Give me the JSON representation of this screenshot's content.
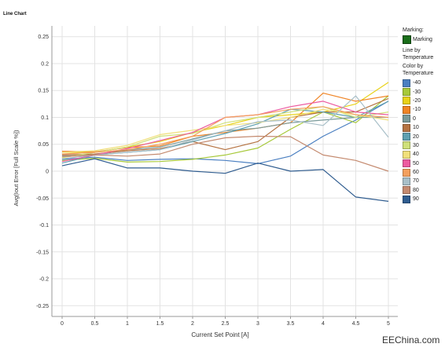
{
  "chart_data": {
    "type": "line",
    "title": "Line Chart",
    "xlabel": "Current Set Point [A]",
    "ylabel": "Avg(Iout Error [Full Scale %])",
    "x": [
      0,
      0.5,
      1,
      1.5,
      2,
      2.5,
      3,
      3.5,
      4,
      4.5,
      5
    ],
    "x_ticks": [
      "0",
      "0.5",
      "1",
      "1.5",
      "2",
      "2.5",
      "3",
      "3.5",
      "4",
      "4.5",
      "5"
    ],
    "ylim": [
      -0.27,
      0.27
    ],
    "y_ticks": [
      "0.25",
      "0.2",
      "0.15",
      "0.1",
      "0.05",
      "0",
      "-0.05",
      "-0.1",
      "-0.15",
      "-0.2",
      "-0.25"
    ],
    "grid": true,
    "legend_position": "right",
    "series": [
      {
        "name": "-40",
        "color": "#4a7fc1",
        "values": [
          0.022,
          0.026,
          0.02,
          0.022,
          0.023,
          0.02,
          0.014,
          0.028,
          0.065,
          0.095,
          0.13
        ]
      },
      {
        "name": "-30",
        "color": "#a7c93a",
        "values": [
          0.02,
          0.024,
          0.017,
          0.018,
          0.022,
          0.03,
          0.043,
          0.078,
          0.11,
          0.09,
          0.14
        ]
      },
      {
        "name": "-20",
        "color": "#e8d21a",
        "values": [
          0.035,
          0.035,
          0.045,
          0.055,
          0.072,
          0.085,
          0.1,
          0.105,
          0.11,
          0.125,
          0.165
        ]
      },
      {
        "name": "-10",
        "color": "#f08526",
        "values": [
          0.037,
          0.036,
          0.044,
          0.047,
          0.065,
          0.072,
          0.08,
          0.09,
          0.145,
          0.13,
          0.14
        ]
      },
      {
        "name": "0",
        "color": "#7a9a9a",
        "values": [
          0.028,
          0.03,
          0.04,
          0.045,
          0.06,
          0.075,
          0.08,
          0.09,
          0.095,
          0.1,
          0.1
        ]
      },
      {
        "name": "10",
        "color": "#b57342",
        "values": [
          0.03,
          0.032,
          0.038,
          0.042,
          0.055,
          0.04,
          0.055,
          0.1,
          0.11,
          0.11,
          0.135
        ]
      },
      {
        "name": "20",
        "color": "#5fa0b0",
        "values": [
          0.015,
          0.03,
          0.035,
          0.04,
          0.055,
          0.07,
          0.088,
          0.115,
          0.11,
          0.1,
          0.13
        ]
      },
      {
        "name": "30",
        "color": "#cfe07a",
        "values": [
          0.025,
          0.035,
          0.045,
          0.065,
          0.07,
          0.09,
          0.1,
          0.11,
          0.12,
          0.1,
          0.11
        ]
      },
      {
        "name": "40",
        "color": "#f0df7a",
        "values": [
          0.035,
          0.038,
          0.048,
          0.068,
          0.076,
          0.085,
          0.09,
          0.1,
          0.115,
          0.105,
          0.095
        ]
      },
      {
        "name": "50",
        "color": "#ec5aa0",
        "values": [
          0.018,
          0.03,
          0.042,
          0.057,
          0.072,
          0.1,
          0.105,
          0.12,
          0.13,
          0.11,
          0.105
        ]
      },
      {
        "name": "60",
        "color": "#f3a05e",
        "values": [
          0.032,
          0.035,
          0.04,
          0.05,
          0.065,
          0.1,
          0.105,
          0.115,
          0.12,
          0.105,
          0.1
        ]
      },
      {
        "name": "70",
        "color": "#a8bfc8",
        "values": [
          0.023,
          0.03,
          0.035,
          0.04,
          0.058,
          0.075,
          0.092,
          0.095,
          0.085,
          0.14,
          0.063
        ]
      },
      {
        "name": "80",
        "color": "#c48a6f",
        "values": [
          0.027,
          0.03,
          0.028,
          0.032,
          0.05,
          0.062,
          0.065,
          0.064,
          0.03,
          0.02,
          0.0
        ]
      },
      {
        "name": "90",
        "color": "#2f5c8f",
        "values": [
          0.01,
          0.023,
          0.006,
          0.006,
          0.0,
          -0.004,
          0.015,
          0.0,
          0.003,
          -0.048,
          -0.056
        ]
      }
    ]
  },
  "legend": {
    "marking_heading": "Marking:",
    "marking_label": "Marking",
    "line_by_heading": "Line by Temperature",
    "color_by_heading": "Color by Temperature"
  },
  "watermark": "EEChina.com"
}
